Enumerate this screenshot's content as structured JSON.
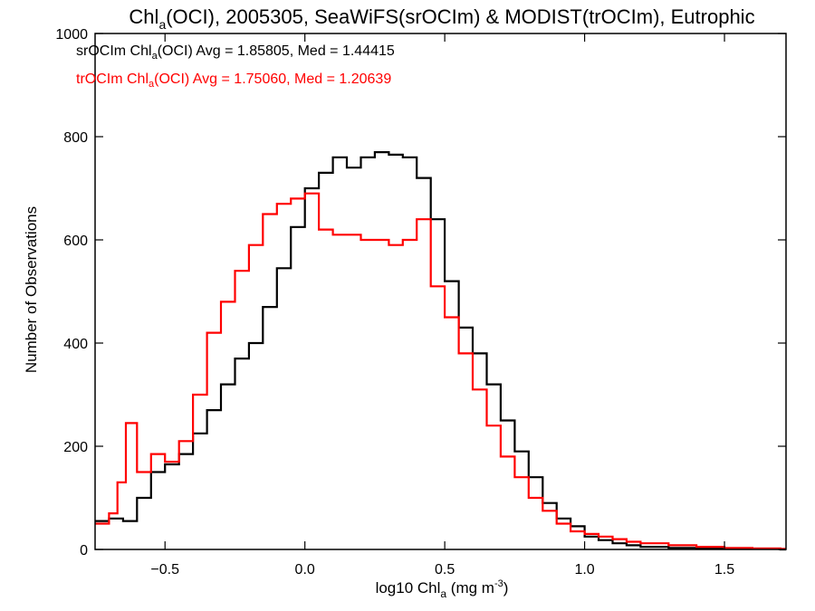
{
  "chart_data": {
    "type": "line",
    "title_parts": {
      "pre": "Chl",
      "sub": "a",
      "post": "(OCI), 2005305, SeaWiFS(srOCIm) & MODIST(trOCIm), Eutrophic"
    },
    "xlabel_parts": {
      "pre": "log10 Chl",
      "sub": "a",
      "post": " (mg m",
      "sup": "-3",
      "end": ")"
    },
    "ylabel": "Number of Observations",
    "xlim": [
      -0.75,
      1.72
    ],
    "ylim": [
      0,
      1000
    ],
    "xticks": [
      -0.5,
      0.0,
      0.5,
      1.0,
      1.5
    ],
    "xtick_labels": [
      "−0.5",
      "0.0",
      "0.5",
      "1.0",
      "1.5"
    ],
    "yticks": [
      0,
      200,
      400,
      600,
      800,
      1000
    ],
    "ytick_labels": [
      "0",
      "200",
      "400",
      "600",
      "800",
      "1000"
    ],
    "legend_position": "top-left",
    "series": [
      {
        "name": "srOCIm",
        "color": "#000000",
        "legend": {
          "pre": "srOCIm Chl",
          "sub": "a",
          "post": "(OCI) Avg = 1.85805, Med = 1.44415"
        },
        "x": [
          -0.75,
          -0.7,
          -0.65,
          -0.6,
          -0.55,
          -0.5,
          -0.45,
          -0.4,
          -0.35,
          -0.3,
          -0.25,
          -0.2,
          -0.15,
          -0.1,
          -0.05,
          0.0,
          0.05,
          0.1,
          0.15,
          0.2,
          0.25,
          0.3,
          0.35,
          0.4,
          0.45,
          0.5,
          0.55,
          0.6,
          0.65,
          0.7,
          0.75,
          0.8,
          0.85,
          0.9,
          0.95,
          1.0,
          1.05,
          1.1,
          1.15,
          1.2,
          1.3,
          1.4,
          1.5,
          1.6,
          1.7
        ],
        "y": [
          55,
          60,
          55,
          100,
          150,
          165,
          185,
          225,
          270,
          320,
          370,
          400,
          470,
          545,
          625,
          700,
          730,
          760,
          740,
          760,
          770,
          765,
          760,
          720,
          640,
          520,
          430,
          380,
          320,
          250,
          190,
          140,
          90,
          60,
          45,
          25,
          18,
          12,
          8,
          5,
          3,
          2,
          1,
          1,
          0
        ]
      },
      {
        "name": "trOCIm",
        "color": "#ff0000",
        "legend": {
          "pre": "trOCIm Chl",
          "sub": "a",
          "post": "(OCI) Avg = 1.75060, Med = 1.20639"
        },
        "x": [
          -0.75,
          -0.7,
          -0.67,
          -0.64,
          -0.6,
          -0.55,
          -0.5,
          -0.45,
          -0.4,
          -0.35,
          -0.3,
          -0.25,
          -0.2,
          -0.15,
          -0.1,
          -0.05,
          0.0,
          0.05,
          0.1,
          0.15,
          0.2,
          0.25,
          0.3,
          0.35,
          0.4,
          0.45,
          0.5,
          0.55,
          0.6,
          0.65,
          0.7,
          0.75,
          0.8,
          0.85,
          0.9,
          0.95,
          1.0,
          1.05,
          1.1,
          1.15,
          1.2,
          1.3,
          1.4,
          1.5,
          1.6,
          1.7
        ],
        "y": [
          50,
          70,
          130,
          245,
          150,
          185,
          170,
          210,
          300,
          420,
          480,
          540,
          590,
          650,
          670,
          680,
          690,
          620,
          610,
          610,
          600,
          600,
          590,
          600,
          640,
          510,
          450,
          380,
          310,
          240,
          180,
          140,
          100,
          75,
          50,
          35,
          30,
          25,
          20,
          15,
          12,
          8,
          5,
          3,
          2,
          1
        ]
      }
    ]
  }
}
